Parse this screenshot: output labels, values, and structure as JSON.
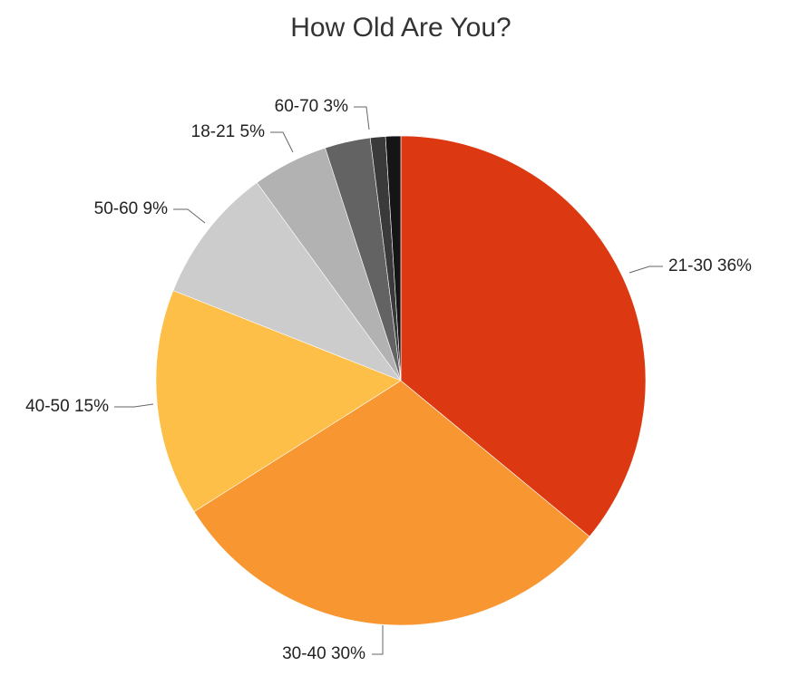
{
  "chart_data": {
    "type": "pie",
    "title": "How Old Are You?",
    "categories": [
      "21-30",
      "30-40",
      "40-50",
      "50-60",
      "18-21",
      "60-70",
      null,
      null
    ],
    "values": [
      36,
      30,
      15,
      9,
      5,
      3,
      1,
      1
    ],
    "value_labels": [
      "36%",
      "30%",
      "15%",
      "9%",
      "5%",
      "3%",
      null,
      null
    ],
    "colors": [
      "#dc3912",
      "#f89731",
      "#fdbf47",
      "#cccccc",
      "#b2b2b2",
      "#636363",
      "#3a3a3a",
      "#151515"
    ]
  }
}
